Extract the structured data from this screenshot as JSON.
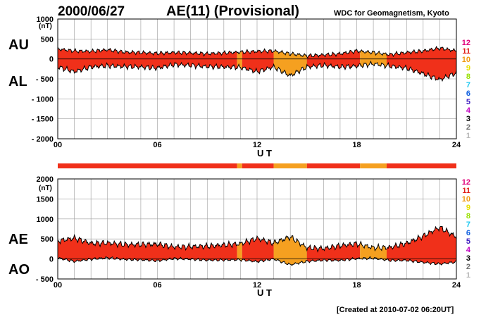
{
  "header": {
    "date": "2000/06/27",
    "title": "AE(11) (Provisional)",
    "source": "WDC for Geomagnetism, Kyoto"
  },
  "footer": {
    "created": "[Created at 2010-07-02 06:20UT]"
  },
  "legend": {
    "items": [
      {
        "label": "12",
        "color": "#e0007a"
      },
      {
        "label": "11",
        "color": "#e0201a"
      },
      {
        "label": "10",
        "color": "#f09a10"
      },
      {
        "label": "9",
        "color": "#e8e000"
      },
      {
        "label": "8",
        "color": "#98e000"
      },
      {
        "label": "7",
        "color": "#20c8f0"
      },
      {
        "label": "6",
        "color": "#1060e0"
      },
      {
        "label": "5",
        "color": "#4020c0"
      },
      {
        "label": "4",
        "color": "#c000c0"
      },
      {
        "label": "3",
        "color": "#000000"
      },
      {
        "label": "2",
        "color": "#707070"
      },
      {
        "label": "1",
        "color": "#b8b8b8"
      }
    ]
  },
  "colors": {
    "fill_11": "#f0301a",
    "fill_10": "#f5a020",
    "grid": "#9a9a9a"
  },
  "chart_data": [
    {
      "type": "area",
      "name": "AU-AL",
      "side_labels": [
        "AU",
        "AL"
      ],
      "unit": "(nT)",
      "xlabel": "U T",
      "xlim": [
        0,
        24
      ],
      "ylim": [
        -2000,
        1000
      ],
      "yticks": [
        "1000",
        "500",
        "0",
        "- 500",
        "- 1000",
        "- 1500",
        "- 2000"
      ],
      "ytick_values": [
        1000,
        500,
        0,
        -500,
        -1000,
        -1500,
        -2000
      ],
      "xticks": [
        "00",
        "06",
        "12",
        "18",
        "24"
      ],
      "xtick_values": [
        0,
        6,
        12,
        18,
        24
      ],
      "hours": [
        0,
        1,
        2,
        3,
        4,
        5,
        6,
        7,
        8,
        9,
        10,
        11,
        12,
        13,
        14,
        15,
        16,
        17,
        18,
        19,
        20,
        21,
        22,
        23,
        24
      ],
      "series": [
        {
          "name": "AU",
          "values": [
            250,
            200,
            190,
            230,
            170,
            160,
            140,
            160,
            150,
            130,
            150,
            170,
            190,
            200,
            130,
            80,
            100,
            130,
            200,
            160,
            110,
            160,
            200,
            270,
            200
          ]
        },
        {
          "name": "AL",
          "values": [
            -200,
            -320,
            -200,
            -170,
            -190,
            -200,
            -230,
            -140,
            -160,
            -190,
            -200,
            -210,
            -320,
            -200,
            -420,
            -200,
            -160,
            -200,
            -180,
            -120,
            -180,
            -230,
            -370,
            -520,
            -350
          ]
        }
      ],
      "station_count_segments": [
        {
          "from": 0,
          "to": 10.8,
          "count": 11
        },
        {
          "from": 10.8,
          "to": 11.1,
          "count": 10
        },
        {
          "from": 11.1,
          "to": 13.0,
          "count": 11
        },
        {
          "from": 13.0,
          "to": 15.0,
          "count": 10
        },
        {
          "from": 15.0,
          "to": 18.2,
          "count": 11
        },
        {
          "from": 18.2,
          "to": 19.8,
          "count": 10
        },
        {
          "from": 19.8,
          "to": 24,
          "count": 11
        }
      ]
    },
    {
      "type": "area",
      "name": "AE-AO",
      "side_labels": [
        "AE",
        "AO"
      ],
      "unit": "(nT)",
      "xlabel": "U T",
      "xlim": [
        0,
        24
      ],
      "ylim": [
        -500,
        2000
      ],
      "yticks": [
        "2000",
        "1500",
        "1000",
        "500",
        "0",
        "- 500"
      ],
      "ytick_values": [
        2000,
        1500,
        1000,
        500,
        0,
        -500
      ],
      "xticks": [
        "00",
        "06",
        "12",
        "18",
        "24"
      ],
      "xtick_values": [
        0,
        6,
        12,
        18,
        24
      ],
      "hours": [
        0,
        1,
        2,
        3,
        4,
        5,
        6,
        7,
        8,
        9,
        10,
        11,
        12,
        13,
        14,
        15,
        16,
        17,
        18,
        19,
        20,
        21,
        22,
        23,
        24
      ],
      "series": [
        {
          "name": "AE",
          "values": [
            450,
            520,
            390,
            400,
            360,
            360,
            370,
            300,
            310,
            320,
            350,
            380,
            510,
            400,
            550,
            280,
            260,
            330,
            380,
            280,
            290,
            390,
            570,
            790,
            550
          ]
        },
        {
          "name": "AO",
          "values": [
            25,
            -60,
            -5,
            30,
            -10,
            -20,
            -45,
            10,
            -5,
            -30,
            -25,
            -20,
            -65,
            0,
            -145,
            -60,
            -30,
            -35,
            10,
            20,
            -35,
            -35,
            -85,
            -125,
            -75
          ]
        }
      ]
    }
  ]
}
